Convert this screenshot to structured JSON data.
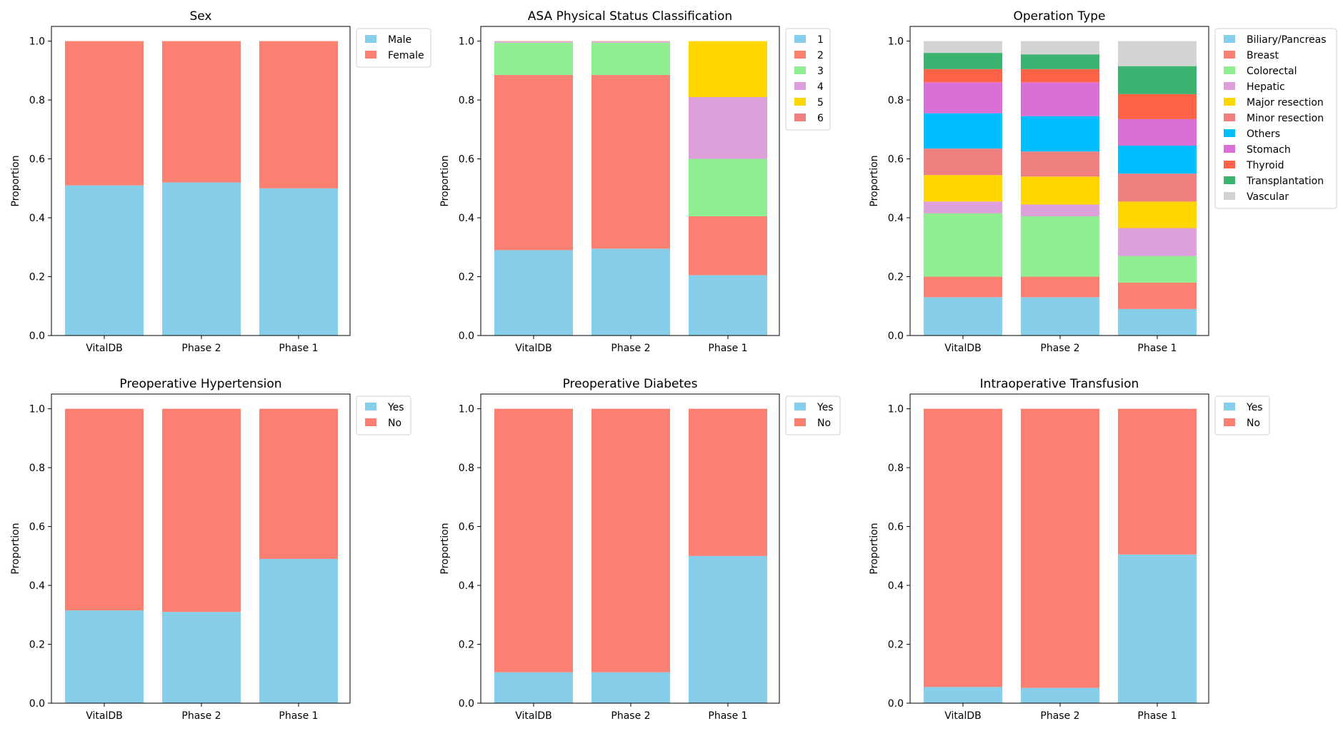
{
  "chart_data": [
    {
      "id": "sex",
      "type": "bar",
      "stacked": true,
      "title": "Sex",
      "categories": [
        "VitalDB",
        "Phase 2",
        "Phase 1"
      ],
      "ylabel": "Proportion",
      "ylim": [
        0,
        1.05
      ],
      "yticks": [
        "0.0",
        "0.2",
        "0.4",
        "0.6",
        "0.8",
        "1.0"
      ],
      "legend_position": "outside-top-right",
      "series": [
        {
          "name": "Male",
          "color": "#87CEEB",
          "values": [
            0.51,
            0.52,
            0.5
          ]
        },
        {
          "name": "Female",
          "color": "#FA8072",
          "values": [
            0.49,
            0.48,
            0.5
          ]
        }
      ]
    },
    {
      "id": "asa",
      "type": "bar",
      "stacked": true,
      "title": "ASA Physical Status Classification",
      "categories": [
        "VitalDB",
        "Phase 2",
        "Phase 1"
      ],
      "ylabel": "Proportion",
      "ylim": [
        0,
        1.05
      ],
      "yticks": [
        "0.0",
        "0.2",
        "0.4",
        "0.6",
        "0.8",
        "1.0"
      ],
      "legend_position": "outside-top-right",
      "series": [
        {
          "name": "1",
          "color": "#87CEEB",
          "values": [
            0.29,
            0.295,
            0.205
          ]
        },
        {
          "name": "2",
          "color": "#FA8072",
          "values": [
            0.595,
            0.59,
            0.2
          ]
        },
        {
          "name": "3",
          "color": "#90EE90",
          "values": [
            0.11,
            0.11,
            0.195
          ]
        },
        {
          "name": "4",
          "color": "#DDA0DD",
          "values": [
            0.004,
            0.004,
            0.21
          ]
        },
        {
          "name": "5",
          "color": "#FFD700",
          "values": [
            0.0005,
            0.0005,
            0.19
          ]
        },
        {
          "name": "6",
          "color": "#F08080",
          "values": [
            0.0005,
            0.0005,
            0.0
          ]
        }
      ]
    },
    {
      "id": "operation",
      "type": "bar",
      "stacked": true,
      "title": "Operation Type",
      "categories": [
        "VitalDB",
        "Phase 2",
        "Phase 1"
      ],
      "ylabel": "Proportion",
      "ylim": [
        0,
        1.05
      ],
      "yticks": [
        "0.0",
        "0.2",
        "0.4",
        "0.6",
        "0.8",
        "1.0"
      ],
      "legend_position": "outside-top-right",
      "series": [
        {
          "name": "Biliary/Pancreas",
          "color": "#87CEEB",
          "values": [
            0.13,
            0.13,
            0.09
          ]
        },
        {
          "name": "Breast",
          "color": "#FA8072",
          "values": [
            0.07,
            0.07,
            0.09
          ]
        },
        {
          "name": "Colorectal",
          "color": "#90EE90",
          "values": [
            0.215,
            0.205,
            0.09
          ]
        },
        {
          "name": "Hepatic",
          "color": "#DDA0DD",
          "values": [
            0.04,
            0.04,
            0.095
          ]
        },
        {
          "name": "Major resection",
          "color": "#FFD700",
          "values": [
            0.09,
            0.095,
            0.09
          ]
        },
        {
          "name": "Minor resection",
          "color": "#F08080",
          "values": [
            0.09,
            0.085,
            0.095
          ]
        },
        {
          "name": "Others",
          "color": "#00BFFF",
          "values": [
            0.12,
            0.12,
            0.095
          ]
        },
        {
          "name": "Stomach",
          "color": "#DA70D6",
          "values": [
            0.105,
            0.115,
            0.09
          ]
        },
        {
          "name": "Thyroid",
          "color": "#FF6347",
          "values": [
            0.045,
            0.045,
            0.085
          ]
        },
        {
          "name": "Transplantation",
          "color": "#3CB371",
          "values": [
            0.055,
            0.05,
            0.095
          ]
        },
        {
          "name": "Vascular",
          "color": "#D3D3D3",
          "values": [
            0.04,
            0.045,
            0.085
          ]
        }
      ]
    },
    {
      "id": "hypertension",
      "type": "bar",
      "stacked": true,
      "title": "Preoperative Hypertension",
      "categories": [
        "VitalDB",
        "Phase 2",
        "Phase 1"
      ],
      "ylabel": "Proportion",
      "ylim": [
        0,
        1.05
      ],
      "yticks": [
        "0.0",
        "0.2",
        "0.4",
        "0.6",
        "0.8",
        "1.0"
      ],
      "legend_position": "outside-top-right",
      "series": [
        {
          "name": "Yes",
          "color": "#87CEEB",
          "values": [
            0.315,
            0.31,
            0.49
          ]
        },
        {
          "name": "No",
          "color": "#FA8072",
          "values": [
            0.685,
            0.69,
            0.51
          ]
        }
      ]
    },
    {
      "id": "diabetes",
      "type": "bar",
      "stacked": true,
      "title": "Preoperative Diabetes",
      "categories": [
        "VitalDB",
        "Phase 2",
        "Phase 1"
      ],
      "ylabel": "Proportion",
      "ylim": [
        0,
        1.05
      ],
      "yticks": [
        "0.0",
        "0.2",
        "0.4",
        "0.6",
        "0.8",
        "1.0"
      ],
      "legend_position": "outside-top-right",
      "series": [
        {
          "name": "Yes",
          "color": "#87CEEB",
          "values": [
            0.105,
            0.105,
            0.5
          ]
        },
        {
          "name": "No",
          "color": "#FA8072",
          "values": [
            0.895,
            0.895,
            0.5
          ]
        }
      ]
    },
    {
      "id": "transfusion",
      "type": "bar",
      "stacked": true,
      "title": "Intraoperative Transfusion",
      "categories": [
        "VitalDB",
        "Phase 2",
        "Phase 1"
      ],
      "ylabel": "Proportion",
      "ylim": [
        0,
        1.05
      ],
      "yticks": [
        "0.0",
        "0.2",
        "0.4",
        "0.6",
        "0.8",
        "1.0"
      ],
      "legend_position": "outside-top-right",
      "series": [
        {
          "name": "Yes",
          "color": "#87CEEB",
          "values": [
            0.055,
            0.052,
            0.505
          ]
        },
        {
          "name": "No",
          "color": "#FA8072",
          "values": [
            0.945,
            0.948,
            0.495
          ]
        }
      ]
    }
  ]
}
